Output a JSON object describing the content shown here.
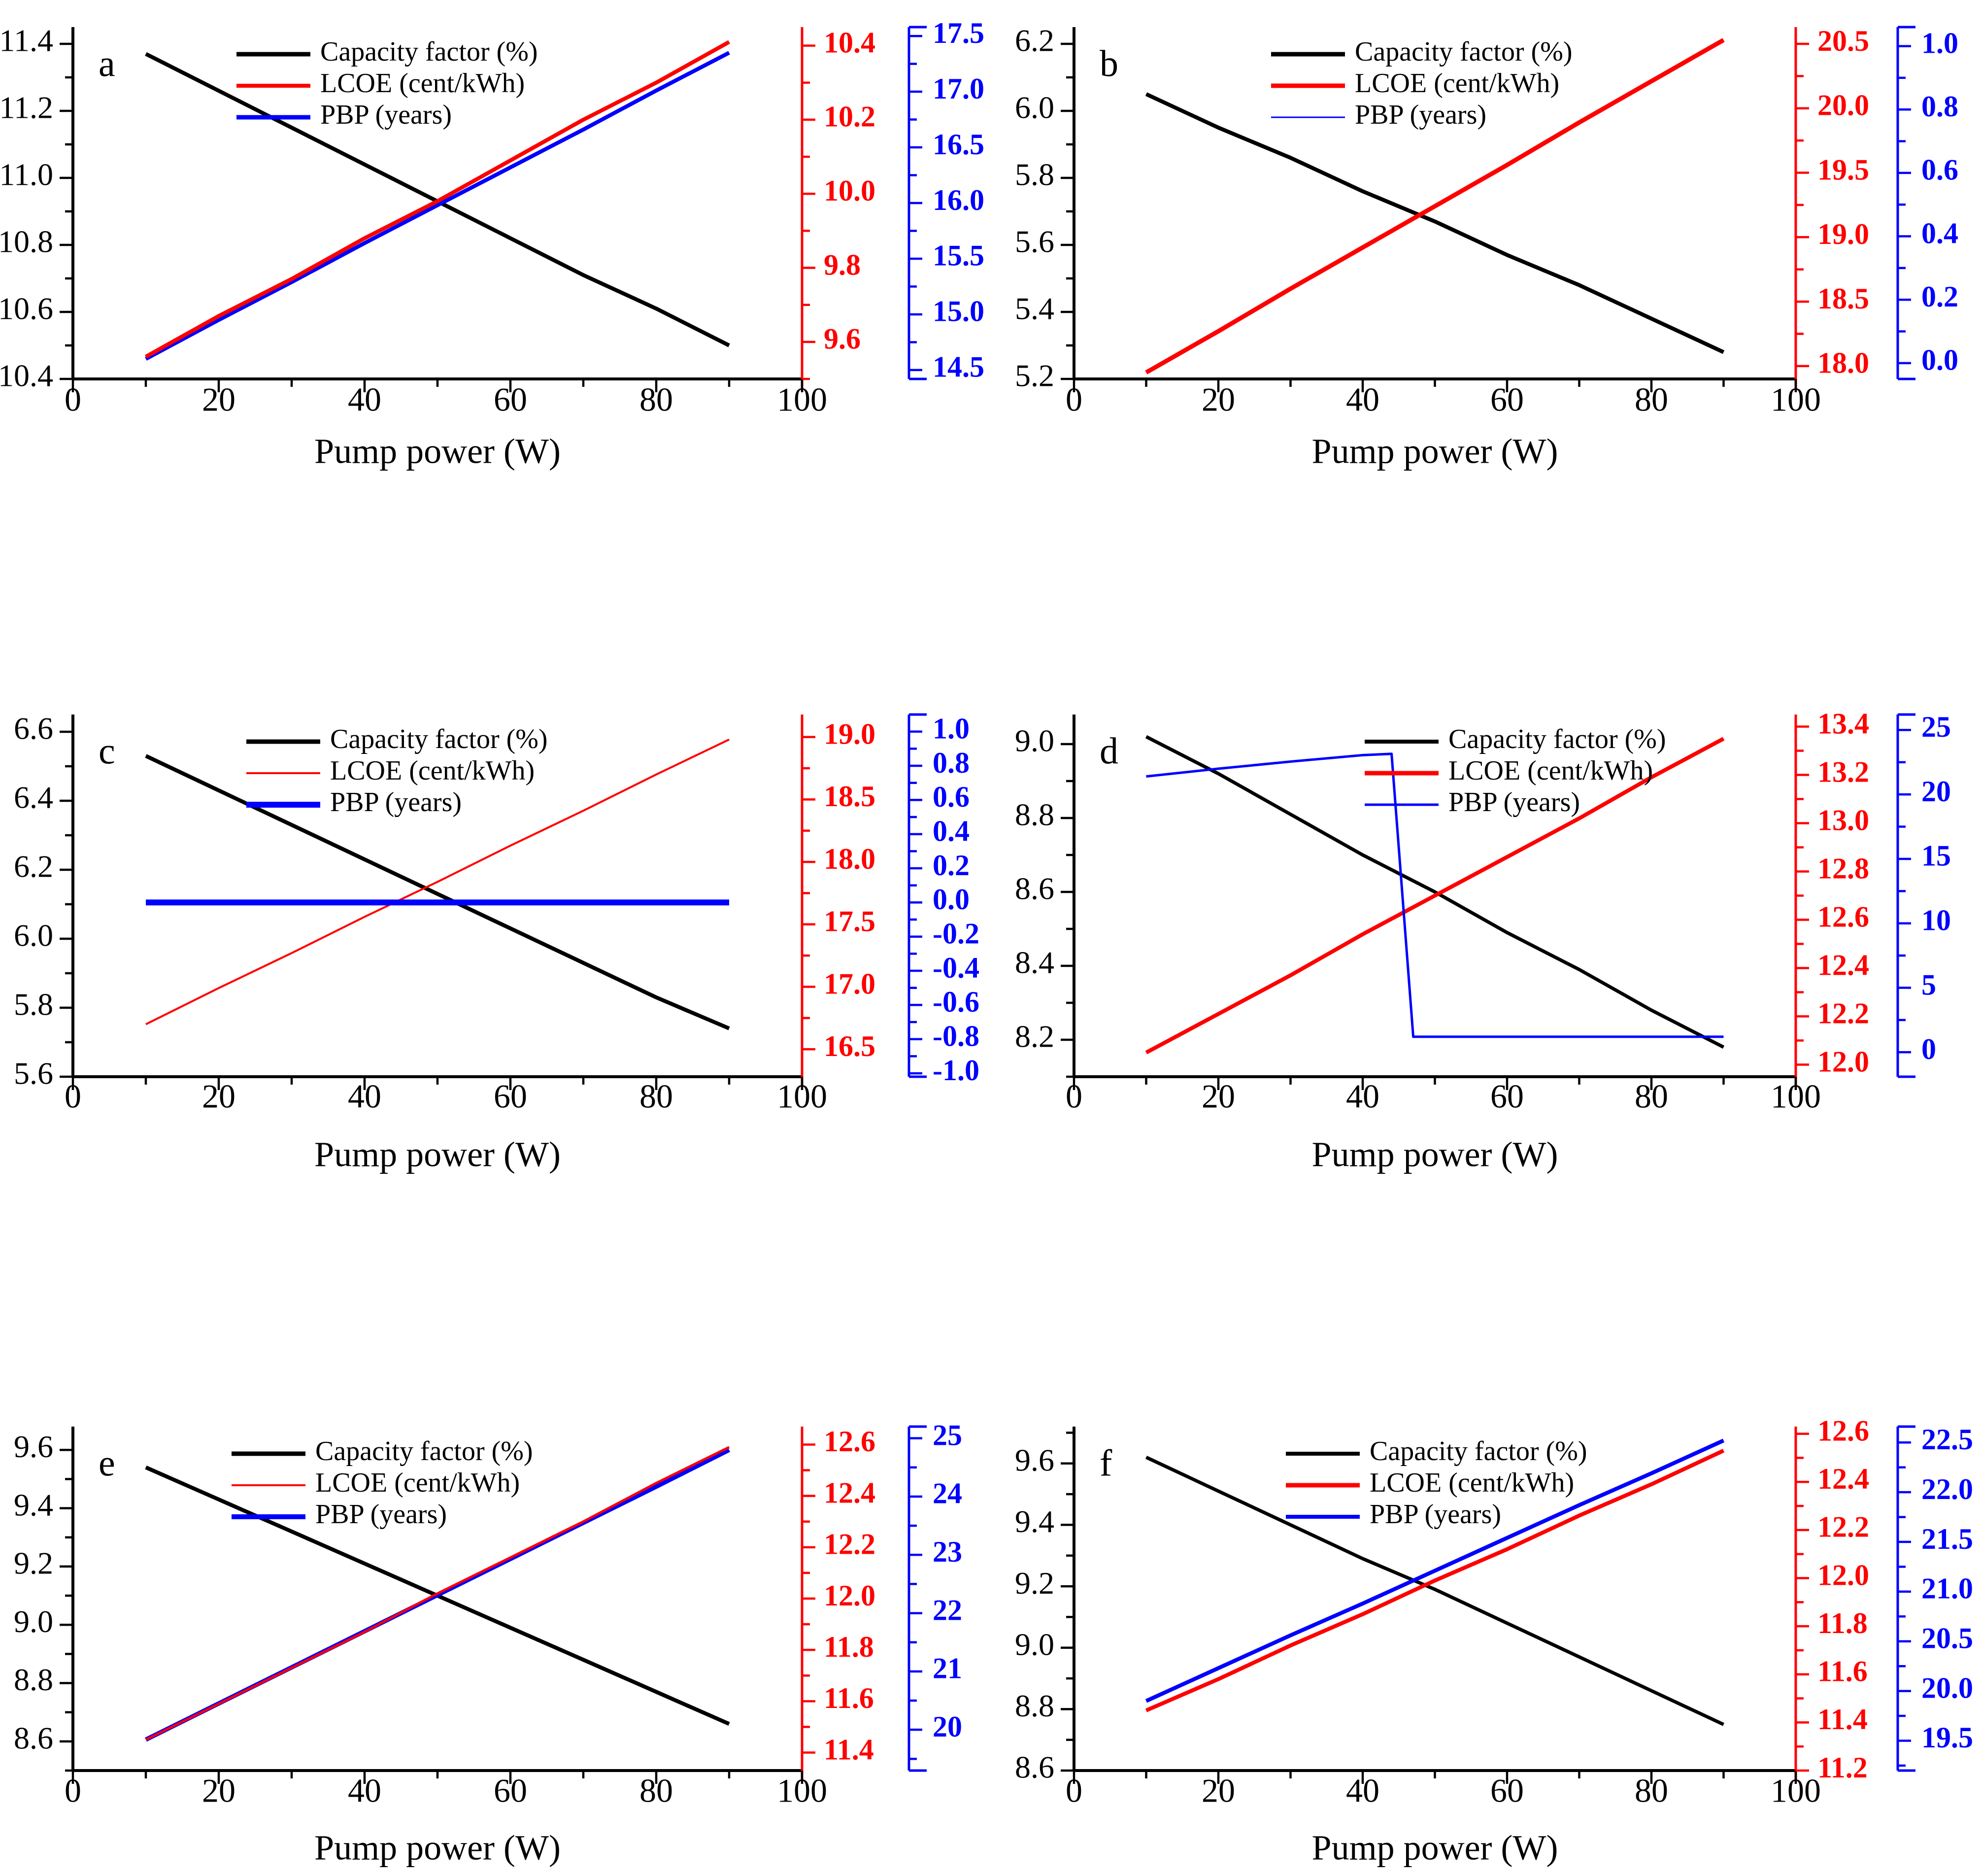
{
  "figure": {
    "xlabel": "Pump power (W)",
    "legend_labels": [
      "Capacity factor (%)",
      "LCOE (cent/kWh)",
      "PBP (years)"
    ],
    "colors": {
      "capacity": "#000000",
      "lcoe": "#ff0000",
      "pbp": "#0000ff",
      "background": "#ffffff"
    }
  },
  "chart_data": {
    "type": "line",
    "x_axis": {
      "label": "Pump power (W)",
      "range": [
        0,
        100
      ],
      "tick_values": [
        0,
        20,
        40,
        60,
        80,
        100
      ],
      "tick_labels": [
        "0",
        "20",
        "40",
        "60",
        "80",
        "100"
      ],
      "minor_step": 10
    },
    "panels": [
      {
        "letter": "a",
        "axes": {
          "left": {
            "range": [
              10.4,
              11.45
            ],
            "tick_values": [
              10.4,
              10.6,
              10.8,
              11.0,
              11.2,
              11.4
            ],
            "tick_labels": [
              "10.4",
              "10.6",
              "10.8",
              "11.0",
              "11.2",
              "11.4"
            ],
            "minor_step": 0.1
          },
          "red": {
            "range": [
              9.5,
              10.45
            ],
            "tick_values": [
              9.6,
              9.8,
              10.0,
              10.2,
              10.4
            ],
            "tick_labels": [
              "9.6",
              "9.8",
              "10.0",
              "10.2",
              "10.4"
            ],
            "minor_step": 0.1
          },
          "blue": {
            "range": [
              14.42,
              17.58
            ],
            "tick_values": [
              14.5,
              15.0,
              15.5,
              16.0,
              16.5,
              17.0,
              17.5
            ],
            "tick_labels": [
              "14.5",
              "15.0",
              "15.5",
              "16.0",
              "16.5",
              "17.0",
              "17.5"
            ],
            "minor_step": 0.25
          }
        },
        "series": {
          "capacity": {
            "x": [
              10,
              20,
              30,
              40,
              50,
              60,
              70,
              80,
              90
            ],
            "y": [
              11.37,
              11.26,
              11.15,
              11.04,
              10.93,
              10.82,
              10.71,
              10.61,
              10.5
            ]
          },
          "lcoe": {
            "x": [
              10,
              20,
              30,
              40,
              50,
              60,
              70,
              80,
              90
            ],
            "y": [
              9.56,
              9.67,
              9.77,
              9.88,
              9.98,
              10.09,
              10.2,
              10.3,
              10.41
            ]
          },
          "pbp": {
            "x": [
              10,
              20,
              30,
              40,
              50,
              60,
              70,
              80,
              90
            ],
            "y": [
              14.6,
              14.95,
              15.29,
              15.64,
              15.98,
              16.32,
              16.66,
              17.01,
              17.35
            ]
          }
        },
        "style": {
          "line_widths": {
            "capacity": 8,
            "lcoe": 8,
            "pbp": 8
          },
          "legend_swatch_widths": [
            9,
            8,
            9
          ],
          "legend_x": 480,
          "draw_order": [
            "capacity",
            "pbp",
            "lcoe"
          ]
        }
      },
      {
        "letter": "b",
        "axes": {
          "left": {
            "range": [
              5.2,
              6.25
            ],
            "tick_values": [
              5.2,
              5.4,
              5.6,
              5.8,
              6.0,
              6.2
            ],
            "tick_labels": [
              "5.2",
              "5.4",
              "5.6",
              "5.8",
              "6.0",
              "6.2"
            ],
            "minor_step": 0.1
          },
          "red": {
            "range": [
              17.9,
              20.63
            ],
            "tick_values": [
              18.0,
              18.5,
              19.0,
              19.5,
              20.0,
              20.5
            ],
            "tick_labels": [
              "18.0",
              "18.5",
              "19.0",
              "19.5",
              "20.0",
              "20.5"
            ],
            "minor_step": 0.25
          },
          "blue": {
            "range": [
              -0.05,
              1.06
            ],
            "tick_values": [
              0.0,
              0.2,
              0.4,
              0.6,
              0.8,
              1.0
            ],
            "tick_labels": [
              "0.0",
              "0.2",
              "0.4",
              "0.6",
              "0.8",
              "1.0"
            ],
            "minor_step": 0.1
          }
        },
        "series": {
          "capacity": {
            "x": [
              10,
              20,
              30,
              40,
              50,
              60,
              70,
              80,
              90
            ],
            "y": [
              6.05,
              5.95,
              5.86,
              5.76,
              5.67,
              5.57,
              5.48,
              5.38,
              5.28
            ]
          },
          "lcoe": {
            "x": [
              10,
              20,
              30,
              40,
              50,
              60,
              70,
              80,
              90
            ],
            "y": [
              17.95,
              18.27,
              18.6,
              18.92,
              19.24,
              19.56,
              19.89,
              20.21,
              20.53
            ]
          },
          "pbp": null
        },
        "style": {
          "line_widths": {
            "capacity": 8,
            "lcoe": 9,
            "pbp": 0
          },
          "legend_swatch_widths": [
            9,
            9,
            3
          ],
          "legend_x": 2580,
          "draw_order": [
            "capacity",
            "lcoe"
          ]
        }
      },
      {
        "letter": "c",
        "axes": {
          "left": {
            "range": [
              5.6,
              6.65
            ],
            "tick_values": [
              5.6,
              5.8,
              6.0,
              6.2,
              6.4,
              6.6
            ],
            "tick_labels": [
              "5.6",
              "5.8",
              "6.0",
              "6.2",
              "6.4",
              "6.6"
            ],
            "minor_step": 0.1
          },
          "red": {
            "range": [
              16.28,
              19.18
            ],
            "tick_values": [
              16.5,
              17.0,
              17.5,
              18.0,
              18.5,
              19.0
            ],
            "tick_labels": [
              "16.5",
              "17.0",
              "17.5",
              "18.0",
              "18.5",
              "19.0"
            ],
            "minor_step": 0.25
          },
          "blue": {
            "range": [
              -1.02,
              1.1
            ],
            "tick_values": [
              -1.0,
              -0.8,
              -0.6,
              -0.4,
              -0.2,
              0.0,
              0.2,
              0.4,
              0.6,
              0.8,
              1.0
            ],
            "tick_labels": [
              "-1.0",
              "-0.8",
              "-0.6",
              "-0.4",
              "-0.2",
              "0.0",
              "0.2",
              "0.4",
              "0.6",
              "0.8",
              "1.0"
            ],
            "minor_step": 0.1
          }
        },
        "series": {
          "capacity": {
            "x": [
              10,
              20,
              30,
              40,
              50,
              60,
              70,
              80,
              90
            ],
            "y": [
              6.53,
              6.43,
              6.33,
              6.23,
              6.13,
              6.03,
              5.93,
              5.83,
              5.74
            ]
          },
          "lcoe": {
            "x": [
              10,
              20,
              30,
              40,
              50,
              60,
              70,
              80,
              90
            ],
            "y": [
              16.7,
              16.99,
              17.27,
              17.56,
              17.84,
              18.13,
              18.41,
              18.7,
              18.98
            ]
          },
          "pbp": {
            "x": [
              10,
              20,
              30,
              40,
              50,
              60,
              70,
              80,
              90
            ],
            "y": [
              0.0,
              0.0,
              0.0,
              0.0,
              0.0,
              0.0,
              0.0,
              0.0,
              0.0
            ]
          }
        },
        "style": {
          "line_widths": {
            "capacity": 8,
            "lcoe": 4,
            "pbp": 12
          },
          "legend_swatch_widths": [
            9,
            4,
            12
          ],
          "legend_x": 500,
          "draw_order": [
            "capacity",
            "lcoe",
            "pbp"
          ]
        }
      },
      {
        "letter": "d",
        "axes": {
          "left": {
            "range": [
              8.1,
              9.08
            ],
            "tick_values": [
              8.2,
              8.4,
              8.6,
              8.8,
              9.0
            ],
            "tick_labels": [
              "8.2",
              "8.4",
              "8.6",
              "8.8",
              "9.0"
            ],
            "minor_step": 0.1
          },
          "red": {
            "range": [
              11.95,
              13.45
            ],
            "tick_values": [
              12.0,
              12.2,
              12.4,
              12.6,
              12.8,
              13.0,
              13.2,
              13.4
            ],
            "tick_labels": [
              "12.0",
              "12.2",
              "12.4",
              "12.6",
              "12.8",
              "13.0",
              "13.2",
              "13.4"
            ],
            "minor_step": 0.1
          },
          "blue": {
            "range": [
              -1.9,
              26.2
            ],
            "tick_values": [
              0,
              5,
              10,
              15,
              20,
              25
            ],
            "tick_labels": [
              "0",
              "5",
              "10",
              "15",
              "20",
              "25"
            ],
            "minor_step": 2.5
          }
        },
        "series": {
          "capacity": {
            "x": [
              10,
              20,
              30,
              40,
              50,
              60,
              70,
              80,
              90
            ],
            "y": [
              9.02,
              8.92,
              8.81,
              8.7,
              8.6,
              8.49,
              8.39,
              8.28,
              8.18
            ]
          },
          "lcoe": {
            "x": [
              10,
              20,
              30,
              40,
              50,
              60,
              70,
              80,
              90
            ],
            "y": [
              12.05,
              12.21,
              12.37,
              12.54,
              12.7,
              12.86,
              13.02,
              13.19,
              13.35
            ]
          },
          "pbp": {
            "x": [
              10,
              20,
              30,
              40,
              44,
              47,
              50,
              60,
              70,
              80,
              90
            ],
            "y": [
              21.4,
              22.0,
              22.55,
              23.05,
              23.15,
              1.2,
              1.2,
              1.2,
              1.2,
              1.2,
              1.2
            ]
          }
        },
        "style": {
          "line_widths": {
            "capacity": 7,
            "lcoe": 8,
            "pbp": 5
          },
          "legend_swatch_widths": [
            8,
            9,
            5
          ],
          "legend_x": 2770,
          "draw_order": [
            "capacity",
            "lcoe",
            "pbp"
          ]
        }
      },
      {
        "letter": "e",
        "axes": {
          "left": {
            "range": [
              8.5,
              9.68
            ],
            "tick_values": [
              8.6,
              8.8,
              9.0,
              9.2,
              9.4,
              9.6
            ],
            "tick_labels": [
              "8.6",
              "8.8",
              "9.0",
              "9.2",
              "9.4",
              "9.6"
            ],
            "minor_step": 0.1
          },
          "red": {
            "range": [
              11.33,
              12.67
            ],
            "tick_values": [
              11.4,
              11.6,
              11.8,
              12.0,
              12.2,
              12.4,
              12.6
            ],
            "tick_labels": [
              "11.4",
              "11.6",
              "11.8",
              "12.0",
              "12.2",
              "12.4",
              "12.6"
            ],
            "minor_step": 0.1
          },
          "blue": {
            "range": [
              19.3,
              25.2
            ],
            "tick_values": [
              20,
              21,
              22,
              23,
              24,
              25
            ],
            "tick_labels": [
              "20",
              "21",
              "22",
              "23",
              "24",
              "25"
            ],
            "minor_step": 0.5
          }
        },
        "series": {
          "capacity": {
            "x": [
              10,
              20,
              30,
              40,
              50,
              60,
              70,
              80,
              90
            ],
            "y": [
              9.54,
              9.43,
              9.32,
              9.21,
              9.1,
              8.99,
              8.88,
              8.77,
              8.66
            ]
          },
          "lcoe": {
            "x": [
              10,
              20,
              30,
              40,
              50,
              60,
              70,
              80,
              90
            ],
            "y": [
              11.45,
              11.59,
              11.73,
              11.87,
              12.02,
              12.16,
              12.3,
              12.45,
              12.59
            ]
          },
          "pbp": {
            "x": [
              10,
              20,
              30,
              40,
              50,
              60,
              70,
              80,
              90
            ],
            "y": [
              19.83,
              20.45,
              21.07,
              21.69,
              22.31,
              22.93,
              23.55,
              24.17,
              24.8
            ]
          }
        },
        "style": {
          "line_widths": {
            "capacity": 8,
            "lcoe": 5,
            "pbp": 9
          },
          "legend_swatch_widths": [
            9,
            4,
            10
          ],
          "legend_x": 470,
          "draw_order": [
            "capacity",
            "pbp",
            "lcoe"
          ]
        }
      },
      {
        "letter": "f",
        "axes": {
          "left": {
            "range": [
              8.6,
              9.72
            ],
            "tick_values": [
              8.6,
              8.8,
              9.0,
              9.2,
              9.4,
              9.6
            ],
            "tick_labels": [
              "8.6",
              "8.8",
              "9.0",
              "9.2",
              "9.4",
              "9.6"
            ],
            "minor_step": 0.1
          },
          "red": {
            "range": [
              11.2,
              12.63
            ],
            "tick_values": [
              11.2,
              11.4,
              11.6,
              11.8,
              12.0,
              12.2,
              12.4,
              12.6
            ],
            "tick_labels": [
              "11.2",
              "11.4",
              "11.6",
              "11.8",
              "12.0",
              "12.2",
              "12.4",
              "12.6"
            ],
            "minor_step": 0.1
          },
          "blue": {
            "range": [
              19.2,
              22.66
            ],
            "tick_values": [
              19.5,
              20.0,
              20.5,
              21.0,
              21.5,
              22.0,
              22.5
            ],
            "tick_labels": [
              "19.5",
              "20.0",
              "20.5",
              "21.0",
              "21.5",
              "22.0",
              "22.5"
            ],
            "minor_step": 0.25
          }
        },
        "series": {
          "capacity": {
            "x": [
              10,
              20,
              30,
              40,
              50,
              60,
              70,
              80,
              90
            ],
            "y": [
              9.62,
              9.51,
              9.4,
              9.29,
              9.19,
              9.08,
              8.97,
              8.86,
              8.75
            ]
          },
          "lcoe": {
            "x": [
              10,
              20,
              30,
              40,
              50,
              60,
              70,
              80,
              90
            ],
            "y": [
              11.45,
              11.58,
              11.72,
              11.85,
              11.99,
              12.12,
              12.26,
              12.39,
              12.53
            ]
          },
          "pbp": {
            "x": [
              10,
              20,
              30,
              40,
              50,
              60,
              70,
              80,
              90
            ],
            "y": [
              19.9,
              20.23,
              20.56,
              20.88,
              21.21,
              21.54,
              21.87,
              22.19,
              22.52
            ]
          }
        },
        "style": {
          "line_widths": {
            "capacity": 7,
            "lcoe": 8,
            "pbp": 8
          },
          "legend_swatch_widths": [
            8,
            9,
            8
          ],
          "legend_x": 2610,
          "draw_order": [
            "capacity",
            "lcoe",
            "pbp"
          ]
        }
      }
    ]
  }
}
